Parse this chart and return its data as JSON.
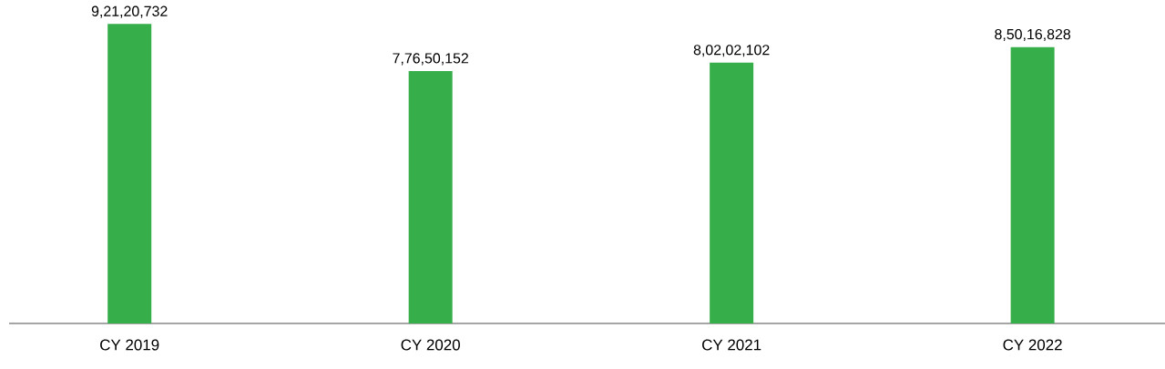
{
  "chart_data": {
    "type": "bar",
    "categories": [
      "CY 2019",
      "CY 2020",
      "CY 2021",
      "CY 2022"
    ],
    "values": [
      92120732,
      77650152,
      80202102,
      85016828
    ],
    "value_labels": [
      "9,21,20,732",
      "7,76,50,152",
      "8,02,02,102",
      "8,50,16,828"
    ],
    "color": "#36ae4a",
    "tick_labels": "x"
  }
}
